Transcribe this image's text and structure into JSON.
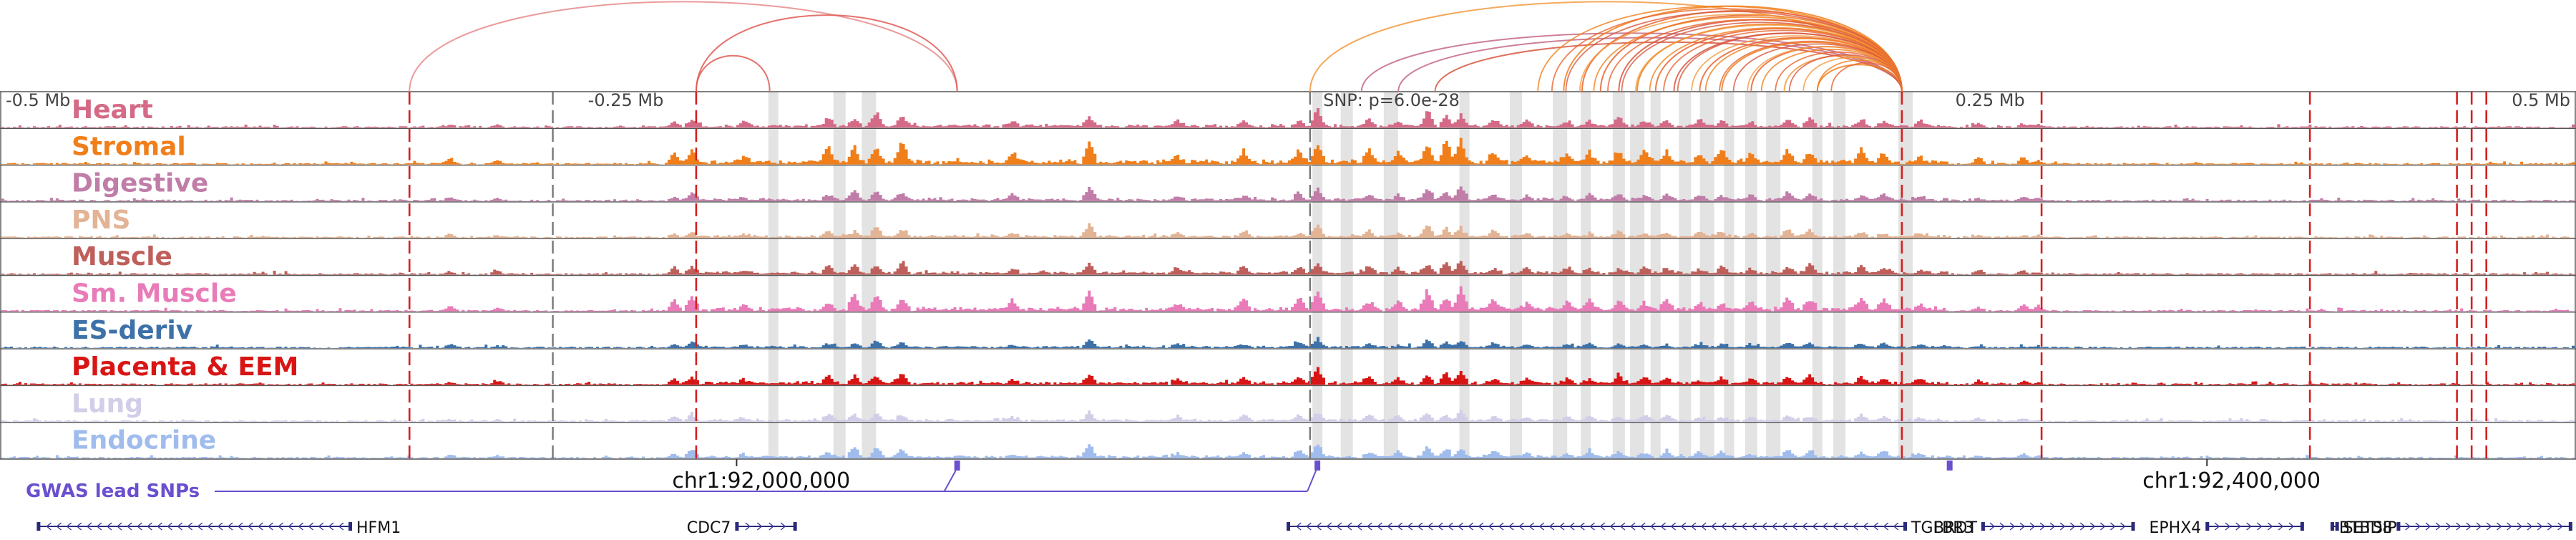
{
  "chart_data": {
    "type": "area",
    "x_unit": "bp (chr1)",
    "x_range": [
      91800000,
      92500000
    ],
    "focal_snp": {
      "position": 92158000,
      "label": "SNP: p=6.0e-28"
    },
    "relative_ticks": [
      {
        "position": 91800000,
        "label": "-0.5 Mb"
      },
      {
        "position": 91958000,
        "label": "-0.25 Mb"
      },
      {
        "position": 92158000,
        "label": "SNP: p=6.0e-28"
      },
      {
        "position": 92330000,
        "label": "0.25 Mb"
      },
      {
        "position": 92500000,
        "label": "0.5 Mb"
      }
    ],
    "coordinate_labels": [
      {
        "position": 92000000,
        "label": "chr1:92,000,000"
      },
      {
        "position": 92400000,
        "label": "chr1:92,400,000"
      }
    ],
    "tracks": [
      {
        "name": "Heart",
        "color": "#d46a86",
        "max": 0.6
      },
      {
        "name": "Stromal",
        "color": "#f07f1b",
        "max": 1.0
      },
      {
        "name": "Digestive",
        "color": "#c07da8",
        "max": 0.5
      },
      {
        "name": "PNS",
        "color": "#e2b394",
        "max": 0.45
      },
      {
        "name": "Muscle",
        "color": "#bf5f5b",
        "max": 0.55
      },
      {
        "name": "Sm. Muscle",
        "color": "#e87bb8",
        "max": 0.85
      },
      {
        "name": "ES-deriv",
        "color": "#3d71a8",
        "max": 0.3
      },
      {
        "name": "Placenta & EEM",
        "color": "#d81515",
        "max": 0.55
      },
      {
        "name": "Lung",
        "color": "#d2cee8",
        "max": 0.4
      },
      {
        "name": "Endocrine",
        "color": "#9fbcec",
        "max": 0.5
      }
    ],
    "peaks": [
      {
        "position": 91922000,
        "height": 0.25
      },
      {
        "position": 91935000,
        "height": 0.2
      },
      {
        "position": 91983000,
        "height": 0.45
      },
      {
        "position": 91988000,
        "height": 0.55
      },
      {
        "position": 92002000,
        "height": 0.25
      },
      {
        "position": 92025000,
        "height": 0.55
      },
      {
        "position": 92032000,
        "height": 0.65
      },
      {
        "position": 92038000,
        "height": 0.8
      },
      {
        "position": 92045000,
        "height": 0.7
      },
      {
        "position": 92075000,
        "height": 0.35
      },
      {
        "position": 92096000,
        "height": 0.95
      },
      {
        "position": 92120000,
        "height": 0.35
      },
      {
        "position": 92138000,
        "height": 0.45
      },
      {
        "position": 92153000,
        "height": 0.55
      },
      {
        "position": 92158000,
        "height": 1.0
      },
      {
        "position": 92172000,
        "height": 0.5
      },
      {
        "position": 92180000,
        "height": 0.4
      },
      {
        "position": 92188000,
        "height": 0.9
      },
      {
        "position": 92193000,
        "height": 0.75
      },
      {
        "position": 92197000,
        "height": 0.9
      },
      {
        "position": 92206000,
        "height": 0.5
      },
      {
        "position": 92215000,
        "height": 0.35
      },
      {
        "position": 92226000,
        "height": 0.35
      },
      {
        "position": 92232000,
        "height": 0.45
      },
      {
        "position": 92240000,
        "height": 0.5
      },
      {
        "position": 92247000,
        "height": 0.4
      },
      {
        "position": 92253000,
        "height": 0.45
      },
      {
        "position": 92262000,
        "height": 0.4
      },
      {
        "position": 92268000,
        "height": 0.45
      },
      {
        "position": 92276000,
        "height": 0.35
      },
      {
        "position": 92286000,
        "height": 0.6
      },
      {
        "position": 92292000,
        "height": 0.55
      },
      {
        "position": 92306000,
        "height": 0.5
      },
      {
        "position": 92312000,
        "height": 0.45
      },
      {
        "position": 92322000,
        "height": 0.3
      },
      {
        "position": 92338000,
        "height": 0.25
      },
      {
        "position": 92350000,
        "height": 0.3
      },
      {
        "position": 92354000,
        "height": 0.2
      }
    ],
    "highlight_regions": [
      92010000,
      92028000,
      92036000,
      92158000,
      92166000,
      92178000,
      92198000,
      92212000,
      92224000,
      92231000,
      92240000,
      92245000,
      92250000,
      92258000,
      92264000,
      92270000,
      92276000,
      92282000,
      92294000,
      92300000,
      92318000
    ],
    "red_dashed_lines": [
      91911000,
      91989000,
      92317000,
      92355000,
      92428000,
      92468000,
      92472000,
      92476000
    ],
    "grey_dashed_lines": [
      91950000,
      92156000
    ],
    "loops": [
      {
        "start": 91911000,
        "end": 92060000,
        "color": "#e88a8a",
        "height": 1.0
      },
      {
        "start": 91989000,
        "end": 92060000,
        "color": "#e05a55",
        "height": 0.85
      },
      {
        "start": 91989000,
        "end": 92009000,
        "color": "#e05a55",
        "height": 0.4
      },
      {
        "start": 92156000,
        "end": 92317000,
        "color": "#f29a40",
        "height": 1.0
      },
      {
        "start": 92170000,
        "end": 92317000,
        "color": "#c46882",
        "height": 0.65
      },
      {
        "start": 92180000,
        "end": 92317000,
        "color": "#c46882",
        "height": 0.6
      },
      {
        "start": 92190000,
        "end": 92317000,
        "color": "#d75840",
        "height": 0.55
      },
      {
        "start": 92225000,
        "end": 92317000,
        "color": "#f07f1b",
        "height": 0.95
      },
      {
        "start": 92230000,
        "end": 92317000,
        "color": "#e9642f",
        "height": 0.9
      },
      {
        "start": 92235000,
        "end": 92317000,
        "color": "#e9642f",
        "height": 0.85
      },
      {
        "start": 92240000,
        "end": 92317000,
        "color": "#d75840",
        "height": 0.8
      },
      {
        "start": 92245000,
        "end": 92317000,
        "color": "#f07f1b",
        "height": 0.75
      },
      {
        "start": 92250000,
        "end": 92317000,
        "color": "#e9642f",
        "height": 0.7
      },
      {
        "start": 92255000,
        "end": 92317000,
        "color": "#d75840",
        "height": 0.65
      },
      {
        "start": 92262000,
        "end": 92317000,
        "color": "#e9642f",
        "height": 0.6
      },
      {
        "start": 92268000,
        "end": 92317000,
        "color": "#f07f1b",
        "height": 0.55
      },
      {
        "start": 92276000,
        "end": 92317000,
        "color": "#e9642f",
        "height": 0.5
      },
      {
        "start": 92285000,
        "end": 92317000,
        "color": "#f29a40",
        "height": 0.4
      },
      {
        "start": 92294000,
        "end": 92317000,
        "color": "#f07f1b",
        "height": 0.3
      }
    ],
    "gwas_track": {
      "label": "GWAS lead SNPs",
      "color": "#6a4fcf",
      "snps": [
        92060000,
        92158000,
        92330000
      ]
    },
    "genes": [
      {
        "name": "HFM1",
        "start": 91810000,
        "end": 91895000,
        "strand": "-",
        "label_side": "right"
      },
      {
        "name": "CDC7",
        "start": 92000000,
        "end": 92016000,
        "strand": "+",
        "label_side": "left"
      },
      {
        "name": "TGFBR3",
        "start": 92150000,
        "end": 92318000,
        "strand": "-",
        "label_side": "right"
      },
      {
        "name": "BRDT",
        "start": 92339000,
        "end": 92380000,
        "strand": "+",
        "label_side": "left"
      },
      {
        "name": "EPHX4",
        "start": 92400000,
        "end": 92426000,
        "strand": "+",
        "label_side": "left"
      },
      {
        "name": "SETSIP",
        "start": 92434000,
        "end": 92435500,
        "strand": "+",
        "label_side": "right"
      },
      {
        "name": "BTBD8",
        "start": 92452000,
        "end": 92499000,
        "strand": "+",
        "label_side": "left"
      }
    ]
  }
}
